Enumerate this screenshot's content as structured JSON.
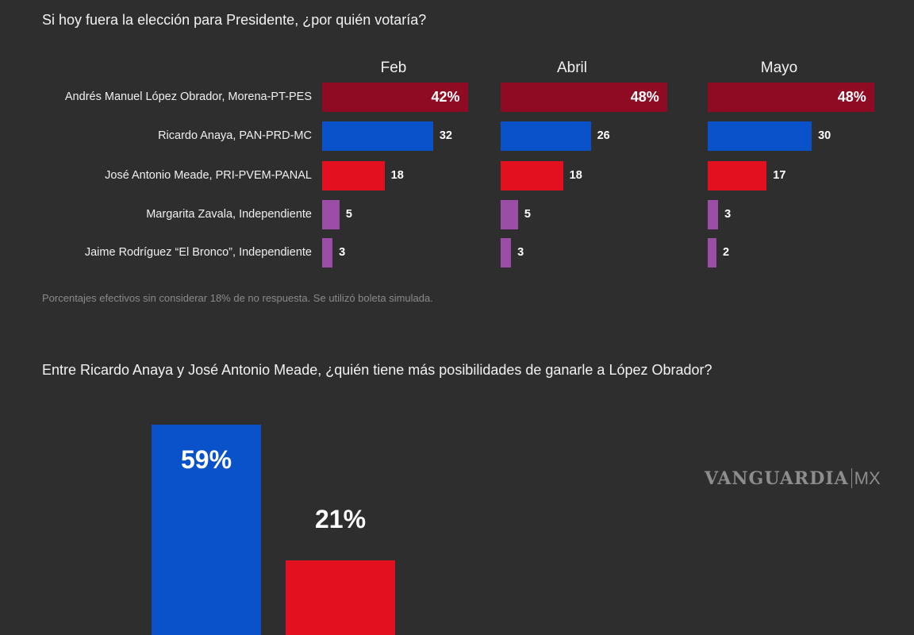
{
  "chart_data": [
    {
      "type": "bar",
      "orientation": "horizontal",
      "title": "Si hoy fuera la elección para Presidente, ¿por quién votaría?",
      "categories": [
        "Andrés Manuel López Obrador, Morena-PT-PES",
        "Ricardo Anaya, PAN-PRD-MC",
        "José Antonio Meade, PRI-PVEM-PANAL",
        "Margarita Zavala, Independiente",
        "Jaime Rodríguez “El Bronco”, Independiente"
      ],
      "colors": [
        "#8f0b24",
        "#0a52c9",
        "#e3101f",
        "#9a4ea6",
        "#9a4ea6"
      ],
      "series": [
        {
          "name": "Feb",
          "values": [
            42,
            32,
            18,
            5,
            3
          ],
          "labels": [
            "42%",
            "32",
            "18",
            "5",
            "3"
          ]
        },
        {
          "name": "Abril",
          "values": [
            48,
            26,
            18,
            5,
            3
          ],
          "labels": [
            "48%",
            "26",
            "18",
            "5",
            "3"
          ]
        },
        {
          "name": "Mayo",
          "values": [
            48,
            30,
            17,
            3,
            2
          ],
          "labels": [
            "48%",
            "30",
            "17",
            "3",
            "2"
          ]
        }
      ],
      "note": "Porcentajes efectivos sin considerar 18% de no respuesta. Se utilizó boleta simulada."
    },
    {
      "type": "bar",
      "title": "Entre Ricardo Anaya y José Antonio Meade, ¿quién tiene más posibilidades de ganarle a López Obrador?",
      "values": [
        59,
        21
      ],
      "labels": [
        "59%",
        "21%"
      ],
      "colors": [
        "#0a52c9",
        "#e3101f"
      ]
    }
  ],
  "logo": {
    "brand": "VANGUARDIA",
    "suffix": "MX"
  }
}
